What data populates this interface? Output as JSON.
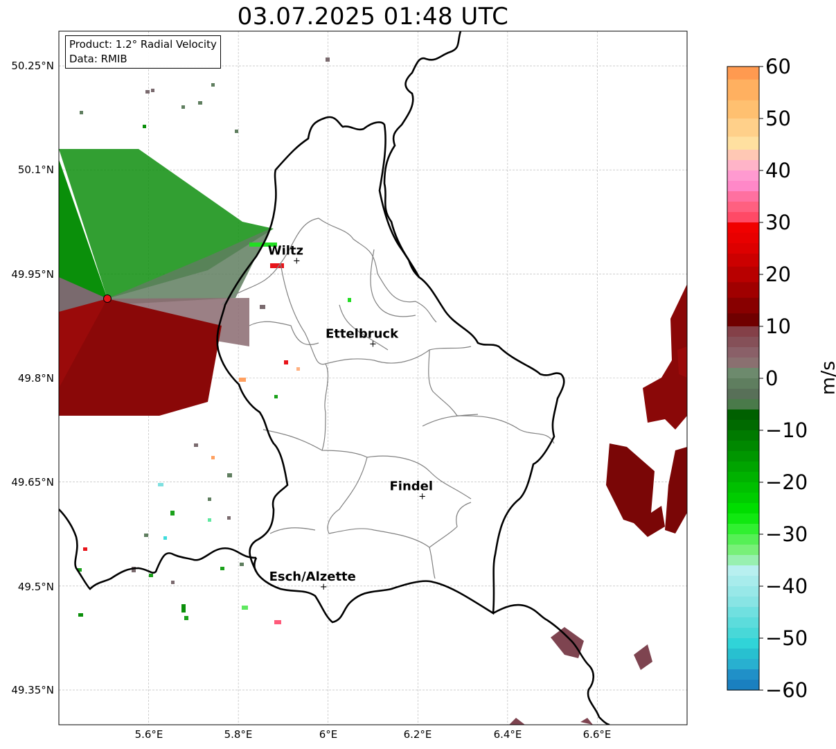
{
  "title": "03.07.2025 01:48 UTC",
  "info": {
    "product": "Product: 1.2° Radial Velocity",
    "data": "Data: RMIB"
  },
  "axes": {
    "lon_ticks": [
      "5.6°E",
      "5.8°E",
      "6°E",
      "6.2°E",
      "6.4°E",
      "6.6°E"
    ],
    "lat_ticks": [
      "50.25°N",
      "50.1°N",
      "49.95°N",
      "49.8°N",
      "49.65°N",
      "49.5°N",
      "49.35°N"
    ],
    "lon_range": [
      5.4,
      6.8
    ],
    "lat_range": [
      49.3,
      50.3
    ]
  },
  "cities": [
    {
      "name": "Wiltz",
      "lon": 5.93,
      "lat": 49.97
    },
    {
      "name": "Ettelbruck",
      "lon": 6.1,
      "lat": 49.85
    },
    {
      "name": "Findel",
      "lon": 6.21,
      "lat": 49.63
    },
    {
      "name": "Esch/Alzette",
      "lon": 5.99,
      "lat": 49.5
    }
  ],
  "radar": {
    "lon": 5.505,
    "lat": 49.915,
    "color": "#e8141a"
  },
  "colorbar": {
    "unit": "m/s",
    "ticks": [
      "60",
      "50",
      "40",
      "30",
      "20",
      "10",
      "0",
      "−10",
      "−20",
      "−30",
      "−40",
      "−50",
      "−60"
    ],
    "range": [
      -60,
      60
    ]
  },
  "colors": {
    "border": "#000000",
    "canton_lines": "#808080",
    "grid": "#b0b0b0"
  }
}
